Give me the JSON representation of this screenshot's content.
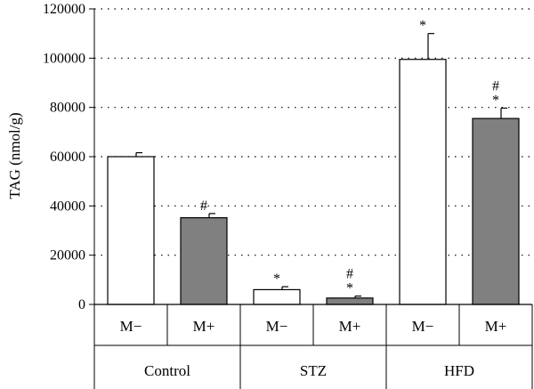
{
  "chart_data": {
    "type": "bar",
    "ylabel": "TAG (nmol/g)",
    "ylim": [
      0,
      120000
    ],
    "yticks": [
      "0",
      "20000",
      "40000",
      "60000",
      "80000",
      "100000",
      "120000"
    ],
    "grid": "dotted horizontal",
    "groups": [
      "Control",
      "STZ",
      "HFD"
    ],
    "categories": [
      "M−",
      "M+",
      "M−",
      "M+",
      "M−",
      "M+"
    ],
    "series_colors": {
      "M−": "#ffffff",
      "M+": "#808080"
    },
    "values": [
      60000,
      35200,
      6000,
      2600,
      99500,
      75500
    ],
    "errors": [
      1600,
      1700,
      1200,
      800,
      10500,
      4200
    ],
    "annotations": [
      [],
      [
        "#"
      ],
      [
        "*"
      ],
      [
        "#",
        "*"
      ],
      [
        "*"
      ],
      [
        "#",
        "*"
      ]
    ]
  }
}
